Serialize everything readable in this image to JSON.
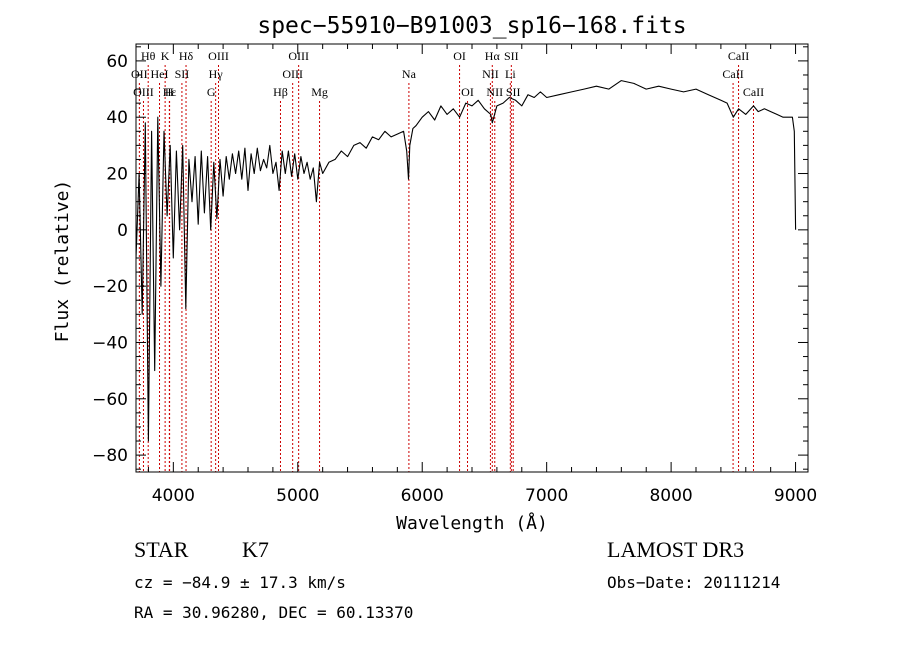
{
  "chart_data": {
    "type": "line",
    "title": "spec−55910−B91003_sp16−168.fits",
    "xlabel": "Wavelength (Å)",
    "ylabel": "Flux (relative)",
    "xlim": [
      3700,
      9100
    ],
    "ylim": [
      -86,
      66
    ],
    "xticks": [
      4000,
      5000,
      6000,
      7000,
      8000,
      9000
    ],
    "yticks": [
      -80,
      -60,
      -40,
      -20,
      0,
      20,
      40,
      60
    ],
    "xtick_labels": [
      "4000",
      "5000",
      "6000",
      "7000",
      "8000",
      "9000"
    ],
    "ytick_labels": [
      "−80",
      "−60",
      "−40",
      "−20",
      "0",
      "20",
      "40",
      "60"
    ],
    "series": [
      {
        "name": "flux",
        "x": [
          3700,
          3725,
          3750,
          3775,
          3800,
          3825,
          3850,
          3875,
          3900,
          3925,
          3950,
          3975,
          4000,
          4025,
          4050,
          4075,
          4100,
          4125,
          4150,
          4175,
          4200,
          4225,
          4250,
          4275,
          4300,
          4325,
          4350,
          4375,
          4400,
          4425,
          4450,
          4475,
          4500,
          4525,
          4550,
          4575,
          4600,
          4625,
          4650,
          4675,
          4700,
          4725,
          4750,
          4775,
          4800,
          4825,
          4850,
          4875,
          4900,
          4925,
          4950,
          4975,
          5000,
          5025,
          5050,
          5075,
          5100,
          5125,
          5150,
          5175,
          5200,
          5250,
          5300,
          5350,
          5400,
          5450,
          5500,
          5550,
          5600,
          5650,
          5700,
          5750,
          5800,
          5850,
          5875,
          5890,
          5900,
          5925,
          5950,
          6000,
          6050,
          6100,
          6150,
          6200,
          6250,
          6300,
          6350,
          6400,
          6450,
          6500,
          6550,
          6563,
          6600,
          6650,
          6700,
          6750,
          6800,
          6850,
          6900,
          6950,
          7000,
          7100,
          7200,
          7300,
          7400,
          7500,
          7600,
          7700,
          7800,
          7900,
          8000,
          8100,
          8200,
          8300,
          8400,
          8450,
          8500,
          8542,
          8600,
          8662,
          8700,
          8750,
          8800,
          8850,
          8900,
          8950,
          8975,
          8990,
          9000
        ],
        "values": [
          -10,
          20,
          -30,
          38,
          -75,
          35,
          -50,
          40,
          -20,
          35,
          5,
          30,
          -10,
          28,
          0,
          30,
          -28,
          25,
          10,
          26,
          2,
          28,
          6,
          26,
          0,
          24,
          4,
          25,
          12,
          26,
          18,
          27,
          20,
          28,
          18,
          29,
          14,
          27,
          20,
          29,
          21,
          25,
          22,
          30,
          20,
          24,
          14,
          28,
          20,
          28,
          19,
          27,
          18,
          26,
          20,
          24,
          18,
          22,
          10,
          24,
          20,
          24,
          25,
          28,
          26,
          30,
          31,
          29,
          33,
          32,
          35,
          33,
          34,
          35,
          28,
          18,
          30,
          36,
          37,
          40,
          42,
          39,
          44,
          41,
          43,
          40,
          45,
          44,
          46,
          43,
          41,
          38,
          44,
          45,
          47,
          46,
          44,
          48,
          47,
          49,
          47,
          48,
          49,
          50,
          51,
          50,
          53,
          52,
          50,
          51,
          50,
          49,
          50,
          48,
          46,
          45,
          40,
          43,
          41,
          44,
          42,
          43,
          42,
          41,
          40,
          40,
          40,
          35,
          0
        ]
      }
    ],
    "line_markers": [
      {
        "label": "Hθ",
        "x": 3798,
        "row": 1
      },
      {
        "label": "K",
        "x": 3934,
        "row": 1
      },
      {
        "label": "Hδ",
        "x": 4102,
        "row": 1
      },
      {
        "label": "OIII",
        "x": 4363,
        "row": 1
      },
      {
        "label": "OIII",
        "x": 5007,
        "row": 1
      },
      {
        "label": "OI",
        "x": 6300,
        "row": 1
      },
      {
        "label": "Hα",
        "x": 6563,
        "row": 1
      },
      {
        "label": "SII",
        "x": 6716,
        "row": 1
      },
      {
        "label": "CaII",
        "x": 8542,
        "row": 1
      },
      {
        "label": "OII",
        "x": 3727,
        "row": 2
      },
      {
        "label": "HeI",
        "x": 3889,
        "row": 2
      },
      {
        "label": "SII",
        "x": 4069,
        "row": 2
      },
      {
        "label": "Hγ",
        "x": 4340,
        "row": 2
      },
      {
        "label": "OIII",
        "x": 4959,
        "row": 2
      },
      {
        "label": "Na",
        "x": 5893,
        "row": 2
      },
      {
        "label": "NII",
        "x": 6548,
        "row": 2
      },
      {
        "label": "Li",
        "x": 6708,
        "row": 2
      },
      {
        "label": "CaII",
        "x": 8498,
        "row": 2
      },
      {
        "label": "OIII",
        "x": 3760,
        "row": 3
      },
      {
        "label": "Hε",
        "x": 3970,
        "row": 3
      },
      {
        "label": "H",
        "x": 3968,
        "row": 3
      },
      {
        "label": "G",
        "x": 4304,
        "row": 3
      },
      {
        "label": "Hβ",
        "x": 4861,
        "row": 3
      },
      {
        "label": "Mg",
        "x": 5175,
        "row": 3
      },
      {
        "label": "OI",
        "x": 6364,
        "row": 3
      },
      {
        "label": "NII",
        "x": 6583,
        "row": 3
      },
      {
        "label": "SII",
        "x": 6731,
        "row": 3
      },
      {
        "label": "CaII",
        "x": 8662,
        "row": 3
      }
    ]
  },
  "info": {
    "object_class": "STAR",
    "subclass": "K7",
    "survey": "LAMOST DR3",
    "cz_line": "cz = −84.9 ± 17.3 km/s",
    "obs_date_line": "Obs−Date: 20111214",
    "coords_line": "RA =  30.96280, DEC =  60.13370"
  }
}
